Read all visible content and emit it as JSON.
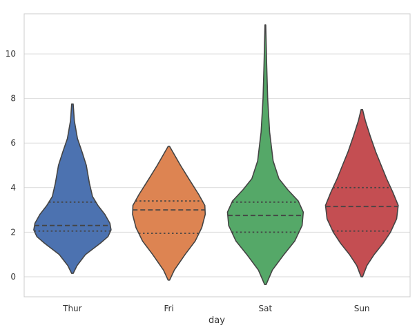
{
  "chart_data": {
    "type": "violin",
    "title": "",
    "xlabel": "day",
    "ylabel": "",
    "categories": [
      "Thur",
      "Fri",
      "Sat",
      "Sun"
    ],
    "ylim": [
      -0.9,
      11.8
    ],
    "yticks": [
      0,
      2,
      4,
      6,
      8,
      10
    ],
    "grid": "horizontal",
    "colors": [
      "#4C72B0",
      "#DD8452",
      "#55A868",
      "#C44E52"
    ],
    "series": [
      {
        "category": "Thur",
        "range": [
          0.15,
          7.75
        ],
        "quartiles": [
          2.05,
          2.3,
          3.35
        ],
        "density": [
          [
            0.15,
            0.02
          ],
          [
            0.5,
            0.12
          ],
          [
            1.0,
            0.34
          ],
          [
            1.5,
            0.72
          ],
          [
            1.8,
            0.92
          ],
          [
            2.1,
            1.0
          ],
          [
            2.4,
            0.97
          ],
          [
            2.8,
            0.84
          ],
          [
            3.2,
            0.66
          ],
          [
            3.6,
            0.52
          ],
          [
            4.2,
            0.44
          ],
          [
            5.0,
            0.36
          ],
          [
            5.6,
            0.25
          ],
          [
            6.2,
            0.13
          ],
          [
            7.0,
            0.05
          ],
          [
            7.75,
            0.02
          ]
        ]
      },
      {
        "category": "Fri",
        "range": [
          -0.15,
          5.85
        ],
        "quartiles": [
          1.95,
          3.0,
          3.4
        ],
        "density": [
          [
            -0.15,
            0.02
          ],
          [
            0.3,
            0.14
          ],
          [
            1.0,
            0.42
          ],
          [
            1.6,
            0.68
          ],
          [
            2.2,
            0.85
          ],
          [
            2.8,
            0.94
          ],
          [
            3.2,
            0.93
          ],
          [
            3.7,
            0.77
          ],
          [
            4.3,
            0.55
          ],
          [
            5.0,
            0.3
          ],
          [
            5.85,
            0.02
          ]
        ]
      },
      {
        "category": "Sat",
        "range": [
          -0.35,
          11.3
        ],
        "quartiles": [
          2.0,
          2.75,
          3.35
        ],
        "density": [
          [
            -0.35,
            0.02
          ],
          [
            0.3,
            0.18
          ],
          [
            1.0,
            0.48
          ],
          [
            1.6,
            0.76
          ],
          [
            2.3,
            0.95
          ],
          [
            2.9,
            0.98
          ],
          [
            3.4,
            0.85
          ],
          [
            3.9,
            0.58
          ],
          [
            4.4,
            0.35
          ],
          [
            5.2,
            0.2
          ],
          [
            6.5,
            0.11
          ],
          [
            8.0,
            0.06
          ],
          [
            9.5,
            0.035
          ],
          [
            11.3,
            0.01
          ]
        ]
      },
      {
        "category": "Sun",
        "range": [
          0.0,
          7.5
        ],
        "quartiles": [
          2.05,
          3.15,
          4.0
        ],
        "density": [
          [
            0.0,
            0.02
          ],
          [
            0.5,
            0.13
          ],
          [
            1.0,
            0.32
          ],
          [
            1.5,
            0.55
          ],
          [
            2.0,
            0.74
          ],
          [
            2.6,
            0.9
          ],
          [
            3.2,
            0.94
          ],
          [
            3.8,
            0.8
          ],
          [
            4.4,
            0.64
          ],
          [
            5.0,
            0.5
          ],
          [
            5.6,
            0.36
          ],
          [
            6.3,
            0.22
          ],
          [
            7.0,
            0.09
          ],
          [
            7.5,
            0.02
          ]
        ]
      }
    ]
  }
}
